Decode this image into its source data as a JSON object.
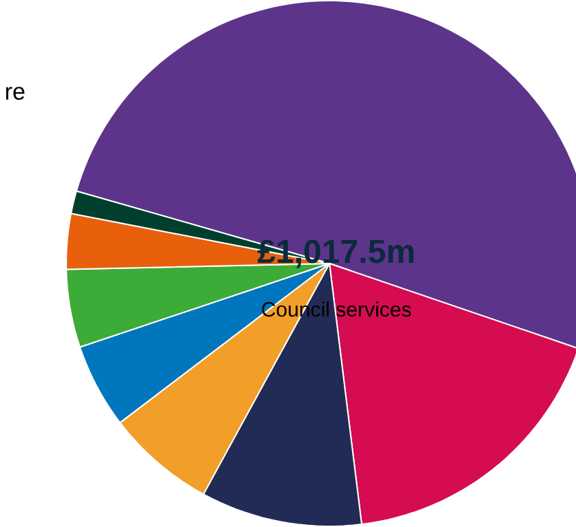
{
  "chart_data": {
    "type": "pie",
    "title": "£1,017.5m",
    "subtitle": "Council services",
    "categories": [
      null,
      null,
      null,
      null,
      null,
      null,
      null,
      null
    ],
    "values": [
      50.8,
      17.8,
      9.9,
      6.7,
      5.2,
      4.8,
      3.4,
      1.4
    ],
    "colors": [
      "#5c358b",
      "#d50c52",
      "#222b55",
      "#f29f2a",
      "#0077bc",
      "#3dab37",
      "#e8600c",
      "#003f2d"
    ],
    "annotations": [
      "re"
    ]
  }
}
